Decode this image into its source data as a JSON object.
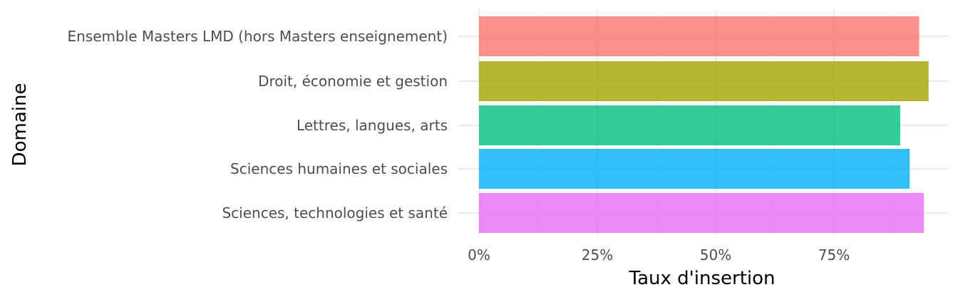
{
  "chart_data": {
    "type": "bar",
    "orientation": "horizontal",
    "categories": [
      "Ensemble Masters LMD (hors Masters enseignement)",
      "Droit, économie et gestion",
      "Lettres, langues, arts",
      "Sciences humaines et sociales",
      "Sciences, technologies et santé"
    ],
    "values": [
      93,
      95,
      89,
      91,
      94
    ],
    "colors": [
      "#F8766D",
      "#A3A500",
      "#00BF7D",
      "#00B0F6",
      "#E76BF3"
    ],
    "xlabel": "Taux d'insertion",
    "ylabel": "Domaine",
    "xlim": [
      0,
      100
    ],
    "x_ticks": [
      0,
      25,
      50,
      75
    ],
    "x_tick_labels": [
      "0%",
      "25%",
      "50%",
      "75%"
    ],
    "grid": true,
    "legend": "none"
  }
}
